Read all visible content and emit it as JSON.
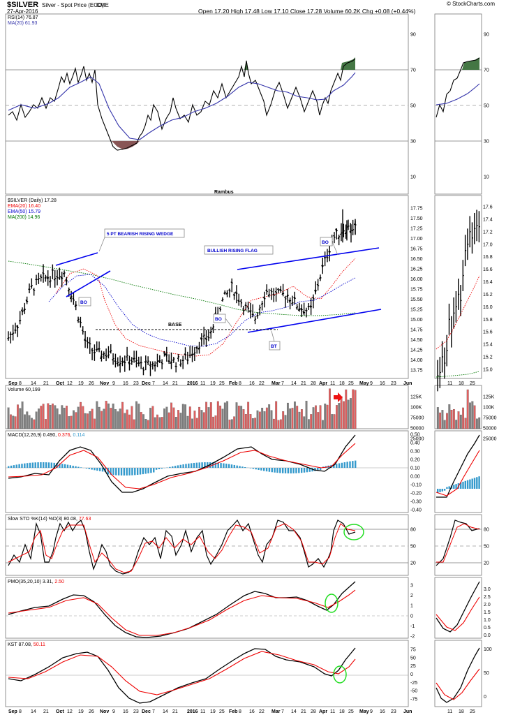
{
  "header": {
    "symbol": "$SILVER",
    "description": "Silver - Spot Price (EOD)",
    "exchange": "CME",
    "date": "27-Apr-2016",
    "ohlc": "Open 17.20  High 17.48  Low 17.10  Close 17.28  Volume 60.2K  Chg +0.08 (+0.44%)",
    "watermark": "© StockCharts.com",
    "chg_color": "#00a000"
  },
  "colors": {
    "rsi_line": "#000000",
    "ma_line": "#3333aa",
    "ema20": "#ee0000",
    "ema50": "#0000cc",
    "ma200": "#007700",
    "vol_up": "#808080",
    "vol_down": "#e06060",
    "macd_hist": "#3399cc",
    "trend": "#0000ee",
    "circle": "#22dd22",
    "rsi_fill_high": "#447744",
    "rsi_fill_low": "#885555"
  },
  "rsi": {
    "legend1": "RSI(14) 76.87",
    "legend2": "MA(20) 61.93",
    "ticks": [
      "90",
      "70",
      "50",
      "30",
      "10"
    ],
    "footer": "Rambus"
  },
  "price": {
    "legend1": "$SILVER (Daily) 17.28",
    "legend2": "EMA(20) 16.40",
    "legend3": "EMA(50) 15.79",
    "legend4": "MA(200) 14.96",
    "ticks": [
      "17.75",
      "17.50",
      "17.25",
      "17.00",
      "16.75",
      "16.50",
      "16.25",
      "16.00",
      "15.75",
      "15.50",
      "15.25",
      "15.00",
      "14.75",
      "14.50",
      "14.25",
      "14.00",
      "13.75"
    ],
    "ticks_right": [
      "17.6",
      "17.4",
      "17.2",
      "17.0",
      "16.8",
      "16.6",
      "16.4",
      "16.2",
      "16.0",
      "15.8",
      "15.6",
      "15.4",
      "15.2",
      "15.0"
    ]
  },
  "annotations": {
    "wedge": "5 PT BEARISH RISING WEDGE",
    "flag": "BULLISH RISING FLAG",
    "bo1": "BO",
    "bo2": "BO",
    "bo3": "BO",
    "bt": "BT",
    "base": "BASE"
  },
  "xaxis": [
    "Sep",
    "8",
    "14",
    "21",
    "Oct",
    "12",
    "19",
    "26",
    "Nov",
    "9",
    "16",
    "23",
    "Dec",
    "7",
    "14",
    "21",
    "2016",
    "11",
    "19",
    "25",
    "Feb",
    "8",
    "16",
    "22",
    "Mar",
    "7",
    "14",
    "21",
    "28",
    "Apr",
    "11",
    "18",
    "25",
    "May",
    "9",
    "16",
    "23",
    "Jun"
  ],
  "xaxis_right": [
    "11",
    "18",
    "25"
  ],
  "volume": {
    "legend": "Volume 60,199",
    "ticks": [
      "125K",
      "100K",
      "75000",
      "50000",
      "25000"
    ]
  },
  "macd": {
    "legend": "MACD(12,26,9)",
    "v1": "0.490",
    "v2": "0.376",
    "v3": "0.114",
    "ticks": [
      "0.50",
      "0.40",
      "0.30",
      "0.20",
      "0.10",
      "0.00",
      "-0.10",
      "-0.20",
      "-0.30",
      "-0.40"
    ]
  },
  "sto": {
    "legend": "Slow STO %K(14) %D(3)",
    "v1": "80.08",
    "v2": "77.63",
    "ticks": [
      "80",
      "50",
      "20"
    ]
  },
  "pmo": {
    "legend": "PMO(35,20,10)",
    "v1": "3.31",
    "v2": "2.50",
    "ticks": [
      "3",
      "2",
      "1",
      "0",
      "-1",
      "-2"
    ],
    "ticks_right": [
      "3.0",
      "2.5",
      "2.0",
      "1.5",
      "1.0",
      "0.5",
      "0.0"
    ]
  },
  "kst": {
    "legend": "KST",
    "v1": "87.08",
    "v2": "50.11",
    "ticks": [
      "75",
      "50",
      "25",
      "0",
      "-25",
      "-50",
      "-75"
    ],
    "ticks_right": [
      "100",
      "50",
      "0"
    ]
  },
  "chart_data": {
    "type": "line",
    "title": "$SILVER Silver - Spot Price (EOD) CME",
    "price_daily": {
      "x": [
        "Sep 8",
        "Sep 21",
        "Oct 1",
        "Oct 12",
        "Oct 19",
        "Oct 26",
        "Nov 1",
        "Nov 9",
        "Nov 16",
        "Nov 23",
        "Dec 1",
        "Dec 7",
        "Dec 14",
        "Dec 21",
        "Jan 4",
        "Jan 11",
        "Jan 19",
        "Jan 25",
        "Feb 1",
        "Feb 8",
        "Feb 16",
        "Feb 22",
        "Mar 1",
        "Mar 7",
        "Mar 14",
        "Mar 21",
        "Mar 28",
        "Apr 1",
        "Apr 11",
        "Apr 18",
        "Apr 25",
        "Apr 27"
      ],
      "close": [
        14.55,
        14.95,
        15.75,
        16.0,
        16.1,
        16.15,
        15.35,
        14.35,
        14.15,
        14.15,
        14.0,
        14.0,
        13.85,
        13.9,
        14.05,
        13.95,
        14.05,
        14.4,
        14.6,
        15.4,
        15.8,
        15.35,
        15.0,
        15.7,
        15.6,
        15.6,
        15.3,
        15.2,
        16.2,
        17.0,
        17.25,
        17.28
      ],
      "ema20": 16.4,
      "ema50": 15.79,
      "ma200": 14.96
    },
    "rsi14": [
      45,
      55,
      65,
      72,
      58,
      40,
      28,
      25,
      35,
      42,
      40,
      45,
      55,
      48,
      50,
      55,
      60,
      68,
      73,
      63,
      58,
      52,
      56,
      57,
      53,
      50,
      60,
      70,
      77,
      76.87
    ],
    "volume_last": 60199,
    "macd": {
      "macd": 0.49,
      "signal": 0.376,
      "hist": 0.114
    },
    "sto": {
      "k": 80.08,
      "d": 77.63
    },
    "pmo": {
      "pmo": 3.31,
      "signal": 2.5
    },
    "kst": {
      "kst": 87.08,
      "signal": 50.11
    }
  }
}
